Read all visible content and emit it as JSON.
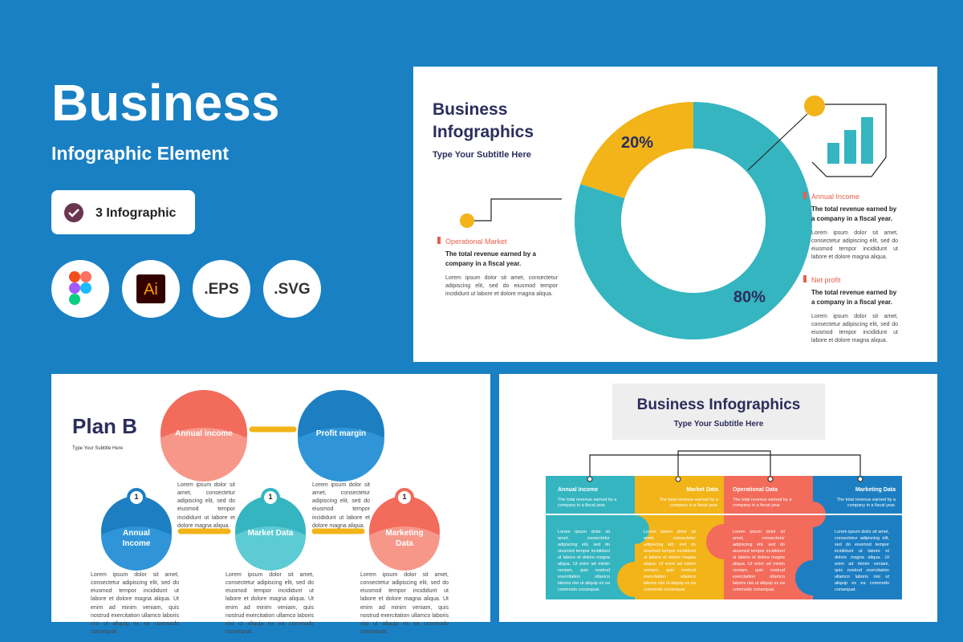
{
  "hero": {
    "title": "Business",
    "subtitle": "Infographic Element",
    "badge": "3 Infographic",
    "formats": [
      "Ai",
      ".EPS",
      ".SVG"
    ]
  },
  "slide1": {
    "title": [
      "Business",
      "Infographics"
    ],
    "subtitle": "Type Your Subtitle Here",
    "donut": {
      "values": [
        20,
        80
      ],
      "value_labels": [
        "20%",
        "80%"
      ],
      "colors": [
        "#f2b418",
        "#35b5c0"
      ]
    },
    "items": [
      {
        "label": "Operational Market",
        "heading": "The total revenue earned by a company in a fiscal year.",
        "body": "Lorem ipsum dolor sit amet, consectetur adipiscing elit, sed do eiusmod tempor incididunt ut labore et dolore magna aliqua."
      },
      {
        "label": "Annual Income",
        "heading": "The total revenue earned by a company in a fiscal year.",
        "body": "Lorem ipsum dolor sit amet, consectetur adipiscing elit, sed do eiusmod tempor incididunt ut labore et dolore magna aliqua."
      },
      {
        "label": "Net profit",
        "heading": "The total revenue earned by a company in a fiscal year.",
        "body": "Lorem ipsum dolor sit amet, consectetur adipiscing elit, sed do eiusmod tempor incididunt ut labore et dolore magna aliqua."
      }
    ]
  },
  "slide2": {
    "title": "Plan B",
    "subtitle": "Type Your Subtitle Here",
    "top": [
      {
        "label": "Annual income",
        "body": "Lorem ipsum dolor sit amet, consectetur adipiscing elit, sed do eiusmod tempor incididunt ut labore et dolore magna aliqua."
      },
      {
        "label": "Profit margin",
        "body": "Lorem ipsum dolor sit amet, consectetur adipiscing elit, sed do eiusmod tempor incididunt ut labore et dolore magna aliqua."
      }
    ],
    "bottom": [
      {
        "badge": "1",
        "label": "Annual Income",
        "body": "Lorem ipsum dolor sit amet, consectetur adipiscing elit, sed do eiusmod tempor incididunt ut labore et dolore magna aliqua. Ut enim ad minim veniam, quis nostrud exercitation ullamco laboris nisi ut aliquip ex ea commodo consequat."
      },
      {
        "badge": "1",
        "label": "Market Data",
        "body": "Lorem ipsum dolor sit amet, consectetur adipiscing elit, sed do eiusmod tempor incididunt ut labore et dolore magna aliqua. Ut enim ad minim veniam, quis nostrud exercitation ullamco laboris nisi ut aliquip ex ea commodo consequat."
      },
      {
        "badge": "1",
        "label": "Marketing Data",
        "body": "Lorem ipsum dolor sit amet, consectetur adipiscing elit, sed do eiusmod tempor incididunt ut labore et dolore magna aliqua. Ut enim ad minim veniam, quis nostrud exercitation ullamco laboris nisi ut aliquip ex ea commodo consequat."
      }
    ]
  },
  "slide3": {
    "title": "Business Infographics",
    "subtitle": "Type Your Subtitle Here",
    "columns": [
      {
        "label": "Annual Income",
        "heading": "The total revenue earned by a company in a fiscal year.",
        "body": "Lorem ipsum dolor sit amet, consectetur adipiscing elit, sed do eiusmod tempor incididunt ut labore et dolore magna aliqua. Ut enim ad minim veniam, quis nostrud exercitation ullamco laboris nisi ut aliquip ex ea commodo consequat."
      },
      {
        "label": "Market Data",
        "heading": "The total revenue earned by a company in a fiscal year.",
        "body": "Lorem ipsum dolor sit amet, consectetur adipiscing elit, sed do eiusmod tempor incididunt ut labore et dolore magna aliqua. Ut enim ad minim veniam, quis nostrud exercitation ullamco laboris nisi ut aliquip ex ea commodo consequat."
      },
      {
        "label": "Operational Data",
        "heading": "The total revenue earned by a company in a fiscal year.",
        "body": "Lorem ipsum dolor sit amet, consectetur adipiscing elit, sed do eiusmod tempor incididunt ut labore et dolore magna aliqua. Ut enim ad minim veniam, quis nostrud exercitation ullamco laboris nisi ut aliquip ex ea commodo consequat."
      },
      {
        "label": "Marketing Data",
        "heading": "The total revenue earned by a company in a fiscal year.",
        "body": "Lorem ipsum dolor sit amet, consectetur adipiscing elit, sed do eiusmod tempor incididunt ut labore et dolore magna aliqua. Ut enim ad minim veniam, quis nostrud exercitation ullamco laboris nisi ut aliquip ex ea commodo consequat."
      }
    ]
  }
}
